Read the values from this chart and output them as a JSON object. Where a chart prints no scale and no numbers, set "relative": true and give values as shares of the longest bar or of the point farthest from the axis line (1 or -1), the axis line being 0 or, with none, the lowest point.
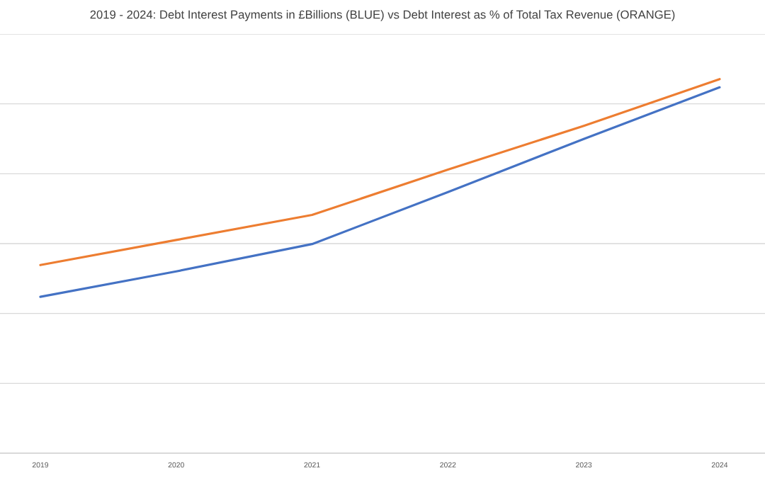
{
  "chart_data": {
    "type": "line",
    "title": "2019 - 2024: Debt Interest Payments in £Billions (BLUE) vs Debt Interest as % of Total Tax Revenue (ORANGE)",
    "categories": [
      "2019",
      "2020",
      "2021",
      "2022",
      "2023",
      "2024"
    ],
    "relative": true,
    "grid": "y",
    "tick_labels": "x",
    "series": [
      {
        "color": "#4472c4",
        "values": [
          0.418,
          0.486,
          0.559,
          0.698,
          0.84,
          0.978
        ]
      },
      {
        "color": "#ed7d31",
        "values": [
          0.503,
          0.57,
          0.637,
          0.758,
          0.875,
          1
        ]
      }
    ]
  }
}
